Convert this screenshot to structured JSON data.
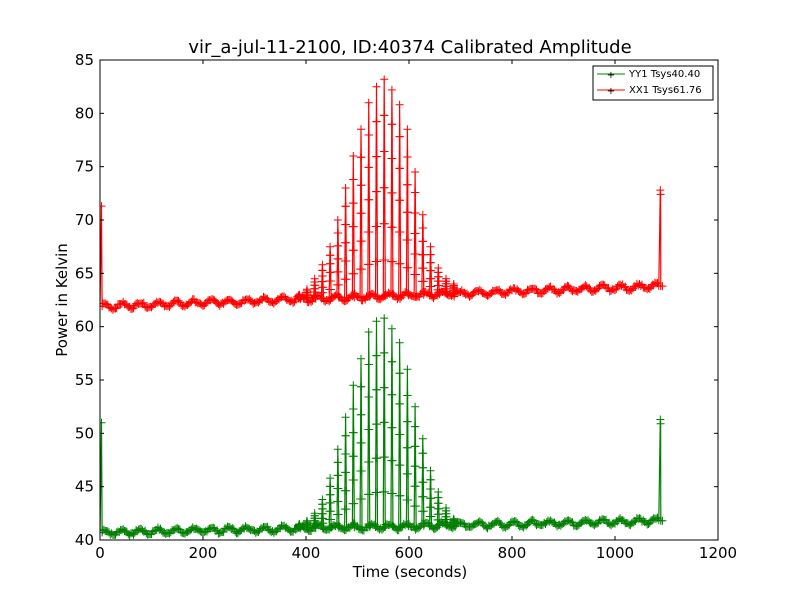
{
  "chart_data": {
    "type": "line",
    "title": "vir_a-jul-11-2100, ID:40374 Calibrated Amplitude",
    "xlabel": "Time (seconds)",
    "ylabel": "Power in Kelvin",
    "xlim": [
      0,
      1200
    ],
    "ylim": [
      40,
      85
    ],
    "xticks": [
      "0",
      "200",
      "400",
      "600",
      "800",
      "1000",
      "1200"
    ],
    "yticks": [
      "40",
      "45",
      "50",
      "55",
      "60",
      "65",
      "70",
      "75",
      "80",
      "85"
    ],
    "legend_position": "top-right",
    "grid": false,
    "series": [
      {
        "name": "YY1 Tsys40.40",
        "color": "#008000",
        "marker": "+",
        "baseline_start": 40.7,
        "baseline_end": 41.8,
        "spike_at_start": {
          "x": 3,
          "y": 51.0
        },
        "spike_at_end": {
          "x": 1088,
          "y": 51.3
        },
        "source_peaks": [
          {
            "x": 385,
            "y": 41.5
          },
          {
            "x": 400,
            "y": 41.8
          },
          {
            "x": 415,
            "y": 42.5
          },
          {
            "x": 430,
            "y": 43.8
          },
          {
            "x": 445,
            "y": 45.8
          },
          {
            "x": 460,
            "y": 48.5
          },
          {
            "x": 475,
            "y": 51.5
          },
          {
            "x": 490,
            "y": 54.5
          },
          {
            "x": 505,
            "y": 57.0
          },
          {
            "x": 520,
            "y": 59.5
          },
          {
            "x": 535,
            "y": 60.5
          },
          {
            "x": 550,
            "y": 60.8
          },
          {
            "x": 565,
            "y": 59.8
          },
          {
            "x": 580,
            "y": 58.5
          },
          {
            "x": 595,
            "y": 56.0
          },
          {
            "x": 610,
            "y": 52.5
          },
          {
            "x": 625,
            "y": 49.5
          },
          {
            "x": 640,
            "y": 46.5
          },
          {
            "x": 655,
            "y": 44.5
          },
          {
            "x": 670,
            "y": 43.0
          },
          {
            "x": 685,
            "y": 42.0
          }
        ]
      },
      {
        "name": "XX1 Tsys61.76",
        "color": "#ff0000",
        "marker": "+",
        "baseline_start": 61.9,
        "baseline_end": 63.8,
        "spike_at_start": {
          "x": 3,
          "y": 71.3
        },
        "spike_at_end": {
          "x": 1088,
          "y": 72.8
        },
        "source_peaks": [
          {
            "x": 385,
            "y": 63.0
          },
          {
            "x": 400,
            "y": 63.5
          },
          {
            "x": 415,
            "y": 64.5
          },
          {
            "x": 430,
            "y": 65.8
          },
          {
            "x": 445,
            "y": 67.5
          },
          {
            "x": 460,
            "y": 70.0
          },
          {
            "x": 475,
            "y": 73.0
          },
          {
            "x": 490,
            "y": 76.0
          },
          {
            "x": 505,
            "y": 78.5
          },
          {
            "x": 520,
            "y": 81.0
          },
          {
            "x": 535,
            "y": 82.5
          },
          {
            "x": 550,
            "y": 83.2
          },
          {
            "x": 565,
            "y": 82.2
          },
          {
            "x": 580,
            "y": 80.8
          },
          {
            "x": 595,
            "y": 78.5
          },
          {
            "x": 610,
            "y": 74.5
          },
          {
            "x": 625,
            "y": 70.5
          },
          {
            "x": 640,
            "y": 67.5
          },
          {
            "x": 655,
            "y": 65.5
          },
          {
            "x": 670,
            "y": 64.5
          },
          {
            "x": 685,
            "y": 64.0
          }
        ]
      }
    ]
  }
}
